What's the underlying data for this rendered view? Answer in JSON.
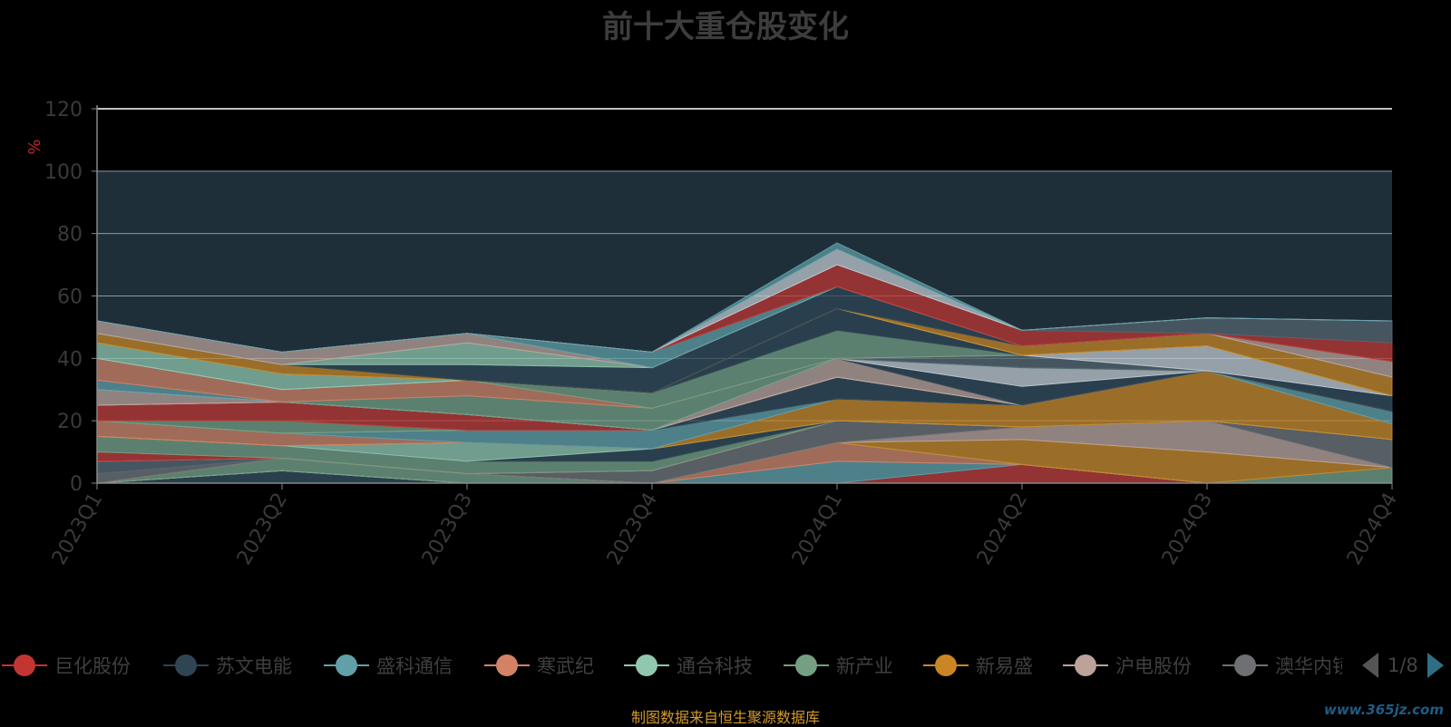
{
  "title": "前十大重仓股变化",
  "source": "制图数据来自恒生聚源数据库",
  "watermark": "www.365jz.com",
  "pager": {
    "page_text": "1/8"
  },
  "chart_data": {
    "type": "area",
    "stacked": true,
    "title": "前十大重仓股变化",
    "ylabel": "%",
    "ylim": [
      0,
      120
    ],
    "yticks": [
      0,
      20,
      40,
      60,
      80,
      100,
      120
    ],
    "categories": [
      "2023Q1",
      "2023Q2",
      "2023Q3",
      "2023Q4",
      "2024Q1",
      "2024Q2",
      "2024Q3",
      "2024Q4"
    ],
    "legend_position": "bottom",
    "legend": [
      "巨化股份",
      "苏文电能",
      "盛科通信",
      "寒武纪",
      "通合科技",
      "新产业",
      "新易盛",
      "沪电股份",
      "澳华内镜"
    ],
    "series": [
      {
        "name": "巨化股份",
        "color": "#c23531",
        "values": [
          0,
          0,
          0,
          0,
          0,
          6,
          0,
          0
        ]
      },
      {
        "name": "苏文电能",
        "color": "#2f4554",
        "values": [
          0,
          4,
          0,
          0,
          0,
          0,
          0,
          0
        ]
      },
      {
        "name": "盛科通信",
        "color": "#61a0a8",
        "values": [
          0,
          0,
          0,
          0,
          7,
          0,
          0,
          0
        ]
      },
      {
        "name": "寒武纪",
        "color": "#d48265",
        "values": [
          0,
          0,
          0,
          0,
          6,
          0,
          0,
          0
        ]
      },
      {
        "name": "通合科技",
        "color": "#91c7ae",
        "values": [
          0,
          0,
          0,
          0,
          0,
          0,
          0,
          0
        ]
      },
      {
        "name": "新产业",
        "color": "#749f83",
        "values": [
          0,
          4,
          3,
          0,
          0,
          0,
          0,
          5
        ]
      },
      {
        "name": "新易盛",
        "color": "#ca8622",
        "values": [
          0,
          0,
          0,
          0,
          0,
          8,
          10,
          0
        ]
      },
      {
        "name": "沪电股份",
        "color": "#bda29a",
        "values": [
          0,
          0,
          0,
          0,
          0,
          4,
          10,
          0
        ]
      },
      {
        "name": "澳华内镜",
        "color": "#6e7074",
        "values": [
          3,
          0,
          0,
          4,
          7,
          0,
          0,
          9
        ]
      },
      {
        "name": "",
        "color": "#546570",
        "values": [
          4,
          0,
          0,
          0,
          0,
          0,
          0,
          0
        ]
      },
      {
        "name": "",
        "color": "#c4ccd3",
        "values": [
          0,
          0,
          0,
          0,
          0,
          0,
          0,
          0
        ]
      },
      {
        "name": "",
        "color": "#c23531",
        "values": [
          3,
          0,
          0,
          0,
          0,
          0,
          0,
          0
        ]
      },
      {
        "name": "",
        "color": "#749f83",
        "values": [
          5,
          4,
          4,
          3,
          0,
          0,
          0,
          0
        ]
      },
      {
        "name": "",
        "color": "#2f4554",
        "values": [
          0,
          0,
          0,
          4,
          0,
          0,
          0,
          0
        ]
      },
      {
        "name": "",
        "color": "#91c7ae",
        "values": [
          0,
          0,
          6,
          0,
          0,
          0,
          0,
          0
        ]
      },
      {
        "name": "",
        "color": "#ca8622",
        "values": [
          0,
          0,
          0,
          0,
          7,
          7,
          16,
          5
        ]
      },
      {
        "name": "",
        "color": "#d48265",
        "values": [
          5,
          4,
          0,
          0,
          0,
          0,
          0,
          0
        ]
      },
      {
        "name": "",
        "color": "#6e7074",
        "values": [
          0,
          0,
          0,
          0,
          0,
          0,
          0,
          0
        ]
      },
      {
        "name": "",
        "color": "#61a0a8",
        "values": [
          0,
          0,
          4,
          6,
          0,
          0,
          0,
          4
        ]
      },
      {
        "name": "",
        "color": "#2f4554",
        "values": [
          0,
          0,
          0,
          0,
          7,
          0,
          0,
          0
        ]
      },
      {
        "name": "",
        "color": "#91c7ae",
        "values": [
          0,
          0,
          0,
          0,
          0,
          0,
          0,
          0
        ]
      },
      {
        "name": "",
        "color": "#749f83",
        "values": [
          0,
          4,
          0,
          0,
          0,
          0,
          0,
          0
        ]
      },
      {
        "name": "",
        "color": "#c23531",
        "values": [
          5,
          6,
          5,
          0,
          0,
          0,
          0,
          0
        ]
      },
      {
        "name": "",
        "color": "#c4ccd3",
        "values": [
          0,
          0,
          0,
          0,
          0,
          0,
          0,
          0
        ]
      },
      {
        "name": "",
        "color": "#bda29a",
        "values": [
          5,
          0,
          0,
          0,
          6,
          0,
          0,
          0
        ]
      },
      {
        "name": "",
        "color": "#2f4554",
        "values": [
          0,
          0,
          0,
          0,
          0,
          6,
          0,
          0
        ]
      },
      {
        "name": "",
        "color": "#c4ccd3",
        "values": [
          0,
          0,
          0,
          0,
          0,
          6,
          0,
          0
        ]
      },
      {
        "name": "",
        "color": "#61a0a8",
        "values": [
          3,
          0,
          0,
          0,
          0,
          0,
          0,
          0
        ]
      },
      {
        "name": "",
        "color": "#749f83",
        "values": [
          0,
          0,
          6,
          7,
          0,
          0,
          0,
          0
        ]
      },
      {
        "name": "",
        "color": "#546570",
        "values": [
          0,
          0,
          0,
          0,
          0,
          4,
          0,
          0
        ]
      },
      {
        "name": "",
        "color": "#d48265",
        "values": [
          7,
          4,
          5,
          0,
          0,
          0,
          0,
          0
        ]
      },
      {
        "name": "",
        "color": "#749f83",
        "values": [
          0,
          0,
          0,
          5,
          9,
          0,
          0,
          0
        ]
      },
      {
        "name": "",
        "color": "#2f4554",
        "values": [
          0,
          0,
          0,
          0,
          7,
          0,
          0,
          5
        ]
      },
      {
        "name": "",
        "color": "#c4ccd3",
        "values": [
          0,
          0,
          0,
          0,
          0,
          0,
          8,
          0
        ]
      },
      {
        "name": "",
        "color": "#91c7ae",
        "values": [
          5,
          5,
          0,
          0,
          0,
          0,
          0,
          0
        ]
      },
      {
        "name": "",
        "color": "#ca8622",
        "values": [
          3,
          3,
          0,
          0,
          0,
          3,
          4,
          6
        ]
      },
      {
        "name": "",
        "color": "#2f4554",
        "values": [
          0,
          0,
          5,
          8,
          7,
          0,
          0,
          0
        ]
      },
      {
        "name": "",
        "color": "#91c7ae",
        "values": [
          0,
          0,
          7,
          0,
          0,
          0,
          0,
          0
        ]
      },
      {
        "name": "",
        "color": "#bda29a",
        "values": [
          4,
          4,
          3,
          0,
          0,
          0,
          0,
          5
        ]
      },
      {
        "name": "",
        "color": "#61a0a8",
        "values": [
          0,
          0,
          0,
          5,
          0,
          0,
          0,
          0
        ]
      },
      {
        "name": "",
        "color": "#c23531",
        "values": [
          0,
          0,
          0,
          0,
          7,
          5,
          0,
          6
        ]
      },
      {
        "name": "",
        "color": "#546570",
        "values": [
          0,
          0,
          0,
          0,
          0,
          0,
          5,
          7
        ]
      },
      {
        "name": "",
        "color": "#c4ccd3",
        "values": [
          0,
          0,
          0,
          0,
          5,
          0,
          0,
          0
        ]
      },
      {
        "name": "",
        "color": "#61a0a8",
        "values": [
          0,
          0,
          0,
          0,
          2,
          0,
          0,
          0
        ]
      }
    ]
  }
}
